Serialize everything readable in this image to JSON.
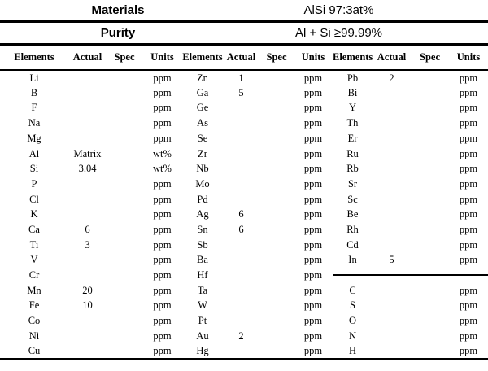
{
  "colors": {
    "text": "#000000",
    "background": "#ffffff",
    "rule": "#000000"
  },
  "header": {
    "materials_label": "Materials",
    "materials_value": "AlSi 97:3at%",
    "purity_label": "Purity",
    "purity_value": "Al + Si ≥99.99%"
  },
  "table": {
    "column_headers": [
      "Elements",
      "Actual",
      "Spec",
      "Units"
    ],
    "groups": [
      {
        "rows": [
          {
            "element": "Li",
            "actual": "",
            "spec": "",
            "units": "ppm"
          },
          {
            "element": "B",
            "actual": "",
            "spec": "",
            "units": "ppm"
          },
          {
            "element": "F",
            "actual": "",
            "spec": "",
            "units": "ppm"
          },
          {
            "element": "Na",
            "actual": "",
            "spec": "",
            "units": "ppm"
          },
          {
            "element": "Mg",
            "actual": "",
            "spec": "",
            "units": "ppm"
          },
          {
            "element": "Al",
            "actual": "Matrix",
            "spec": "",
            "units": "wt%"
          },
          {
            "element": "Si",
            "actual": "3.04",
            "spec": "",
            "units": "wt%"
          },
          {
            "element": "P",
            "actual": "",
            "spec": "",
            "units": "ppm"
          },
          {
            "element": "Cl",
            "actual": "",
            "spec": "",
            "units": "ppm"
          },
          {
            "element": "K",
            "actual": "",
            "spec": "",
            "units": "ppm"
          },
          {
            "element": "Ca",
            "actual": "6",
            "spec": "",
            "units": "ppm"
          },
          {
            "element": "Ti",
            "actual": "3",
            "spec": "",
            "units": "ppm"
          },
          {
            "element": "V",
            "actual": "",
            "spec": "",
            "units": "ppm"
          },
          {
            "element": "Cr",
            "actual": "",
            "spec": "",
            "units": "ppm"
          },
          {
            "element": "Mn",
            "actual": "20",
            "spec": "",
            "units": "ppm"
          },
          {
            "element": "Fe",
            "actual": "10",
            "spec": "",
            "units": "ppm"
          },
          {
            "element": "Co",
            "actual": "",
            "spec": "",
            "units": "ppm"
          },
          {
            "element": "Ni",
            "actual": "",
            "spec": "",
            "units": "ppm"
          },
          {
            "element": "Cu",
            "actual": "",
            "spec": "",
            "units": "ppm"
          }
        ]
      },
      {
        "rows": [
          {
            "element": "Zn",
            "actual": "1",
            "spec": "",
            "units": "ppm"
          },
          {
            "element": "Ga",
            "actual": "5",
            "spec": "",
            "units": "ppm"
          },
          {
            "element": "Ge",
            "actual": "",
            "spec": "",
            "units": "ppm"
          },
          {
            "element": "As",
            "actual": "",
            "spec": "",
            "units": "ppm"
          },
          {
            "element": "Se",
            "actual": "",
            "spec": "",
            "units": "ppm"
          },
          {
            "element": "Zr",
            "actual": "",
            "spec": "",
            "units": "ppm"
          },
          {
            "element": "Nb",
            "actual": "",
            "spec": "",
            "units": "ppm"
          },
          {
            "element": "Mo",
            "actual": "",
            "spec": "",
            "units": "ppm"
          },
          {
            "element": "Pd",
            "actual": "",
            "spec": "",
            "units": "ppm"
          },
          {
            "element": "Ag",
            "actual": "6",
            "spec": "",
            "units": "ppm"
          },
          {
            "element": "Sn",
            "actual": "6",
            "spec": "",
            "units": "ppm"
          },
          {
            "element": "Sb",
            "actual": "",
            "spec": "",
            "units": "ppm"
          },
          {
            "element": "Ba",
            "actual": "",
            "spec": "",
            "units": "ppm"
          },
          {
            "element": "Hf",
            "actual": "",
            "spec": "",
            "units": "ppm"
          },
          {
            "element": "Ta",
            "actual": "",
            "spec": "",
            "units": "ppm"
          },
          {
            "element": "W",
            "actual": "",
            "spec": "",
            "units": "ppm"
          },
          {
            "element": "Pt",
            "actual": "",
            "spec": "",
            "units": "ppm"
          },
          {
            "element": "Au",
            "actual": "2",
            "spec": "",
            "units": "ppm"
          },
          {
            "element": "Hg",
            "actual": "",
            "spec": "",
            "units": "ppm"
          }
        ]
      },
      {
        "rows": [
          {
            "element": "Pb",
            "actual": "2",
            "spec": "",
            "units": "ppm"
          },
          {
            "element": "Bi",
            "actual": "",
            "spec": "",
            "units": "ppm"
          },
          {
            "element": "Y",
            "actual": "",
            "spec": "",
            "units": "ppm"
          },
          {
            "element": "Th",
            "actual": "",
            "spec": "",
            "units": "ppm"
          },
          {
            "element": "Er",
            "actual": "",
            "spec": "",
            "units": "ppm"
          },
          {
            "element": "Ru",
            "actual": "",
            "spec": "",
            "units": "ppm"
          },
          {
            "element": "Rb",
            "actual": "",
            "spec": "",
            "units": "ppm"
          },
          {
            "element": "Sr",
            "actual": "",
            "spec": "",
            "units": "ppm"
          },
          {
            "element": "Sc",
            "actual": "",
            "spec": "",
            "units": "ppm"
          },
          {
            "element": "Be",
            "actual": "",
            "spec": "",
            "units": "ppm"
          },
          {
            "element": "Rh",
            "actual": "",
            "spec": "",
            "units": "ppm"
          },
          {
            "element": "Cd",
            "actual": "",
            "spec": "",
            "units": "ppm"
          },
          {
            "element": "In",
            "actual": "5",
            "spec": "",
            "units": "ppm"
          },
          {
            "divider": true,
            "element": "",
            "actual": "",
            "spec": "",
            "units": ""
          },
          {
            "element": "C",
            "actual": "",
            "spec": "",
            "units": "ppm"
          },
          {
            "element": "S",
            "actual": "",
            "spec": "",
            "units": "ppm"
          },
          {
            "element": "O",
            "actual": "",
            "spec": "",
            "units": "ppm"
          },
          {
            "element": "N",
            "actual": "",
            "spec": "",
            "units": "ppm"
          },
          {
            "element": "H",
            "actual": "",
            "spec": "",
            "units": "ppm"
          }
        ]
      }
    ]
  }
}
